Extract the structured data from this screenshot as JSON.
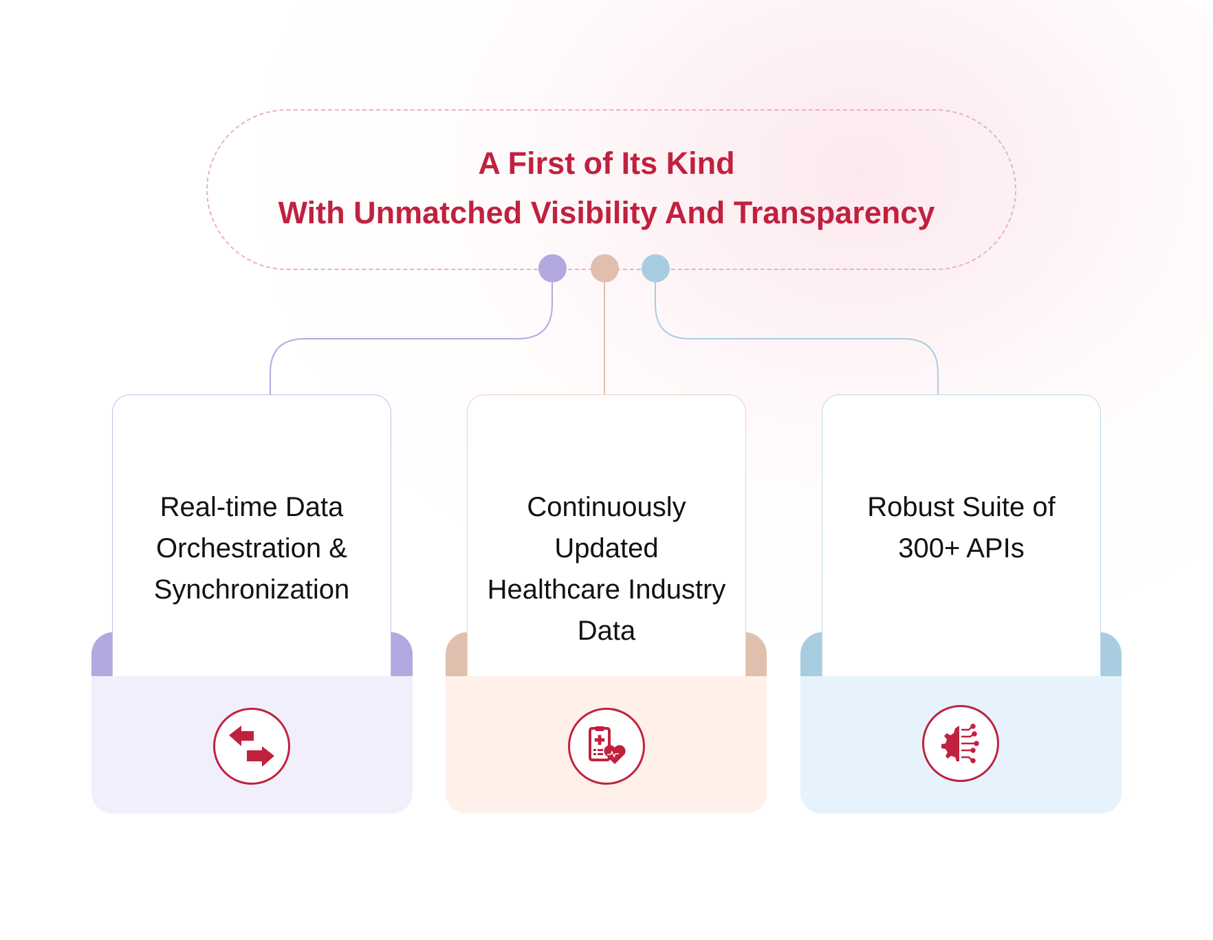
{
  "header": {
    "line1": "A First of Its Kind",
    "line2": "With Unmatched Visibility And Transparency"
  },
  "colors": {
    "accent": "#c0213f",
    "purple": "#b3a8e0",
    "peach": "#e0bfae",
    "blue": "#a9cde0",
    "purple_bg": "#f1effc",
    "peach_bg": "#fff0ea",
    "blue_bg": "#e6f3fc"
  },
  "cards": [
    {
      "lines": [
        "Real-time Data",
        "Orchestration &",
        "Synchronization"
      ],
      "icon": "swap-arrows-icon"
    },
    {
      "lines": [
        "Continuously",
        "Updated",
        "Healthcare Industry",
        "Data"
      ],
      "icon": "medical-clipboard-heart-icon"
    },
    {
      "lines": [
        "Robust Suite of",
        "300+ APIs"
      ],
      "icon": "gear-circuit-icon"
    }
  ]
}
